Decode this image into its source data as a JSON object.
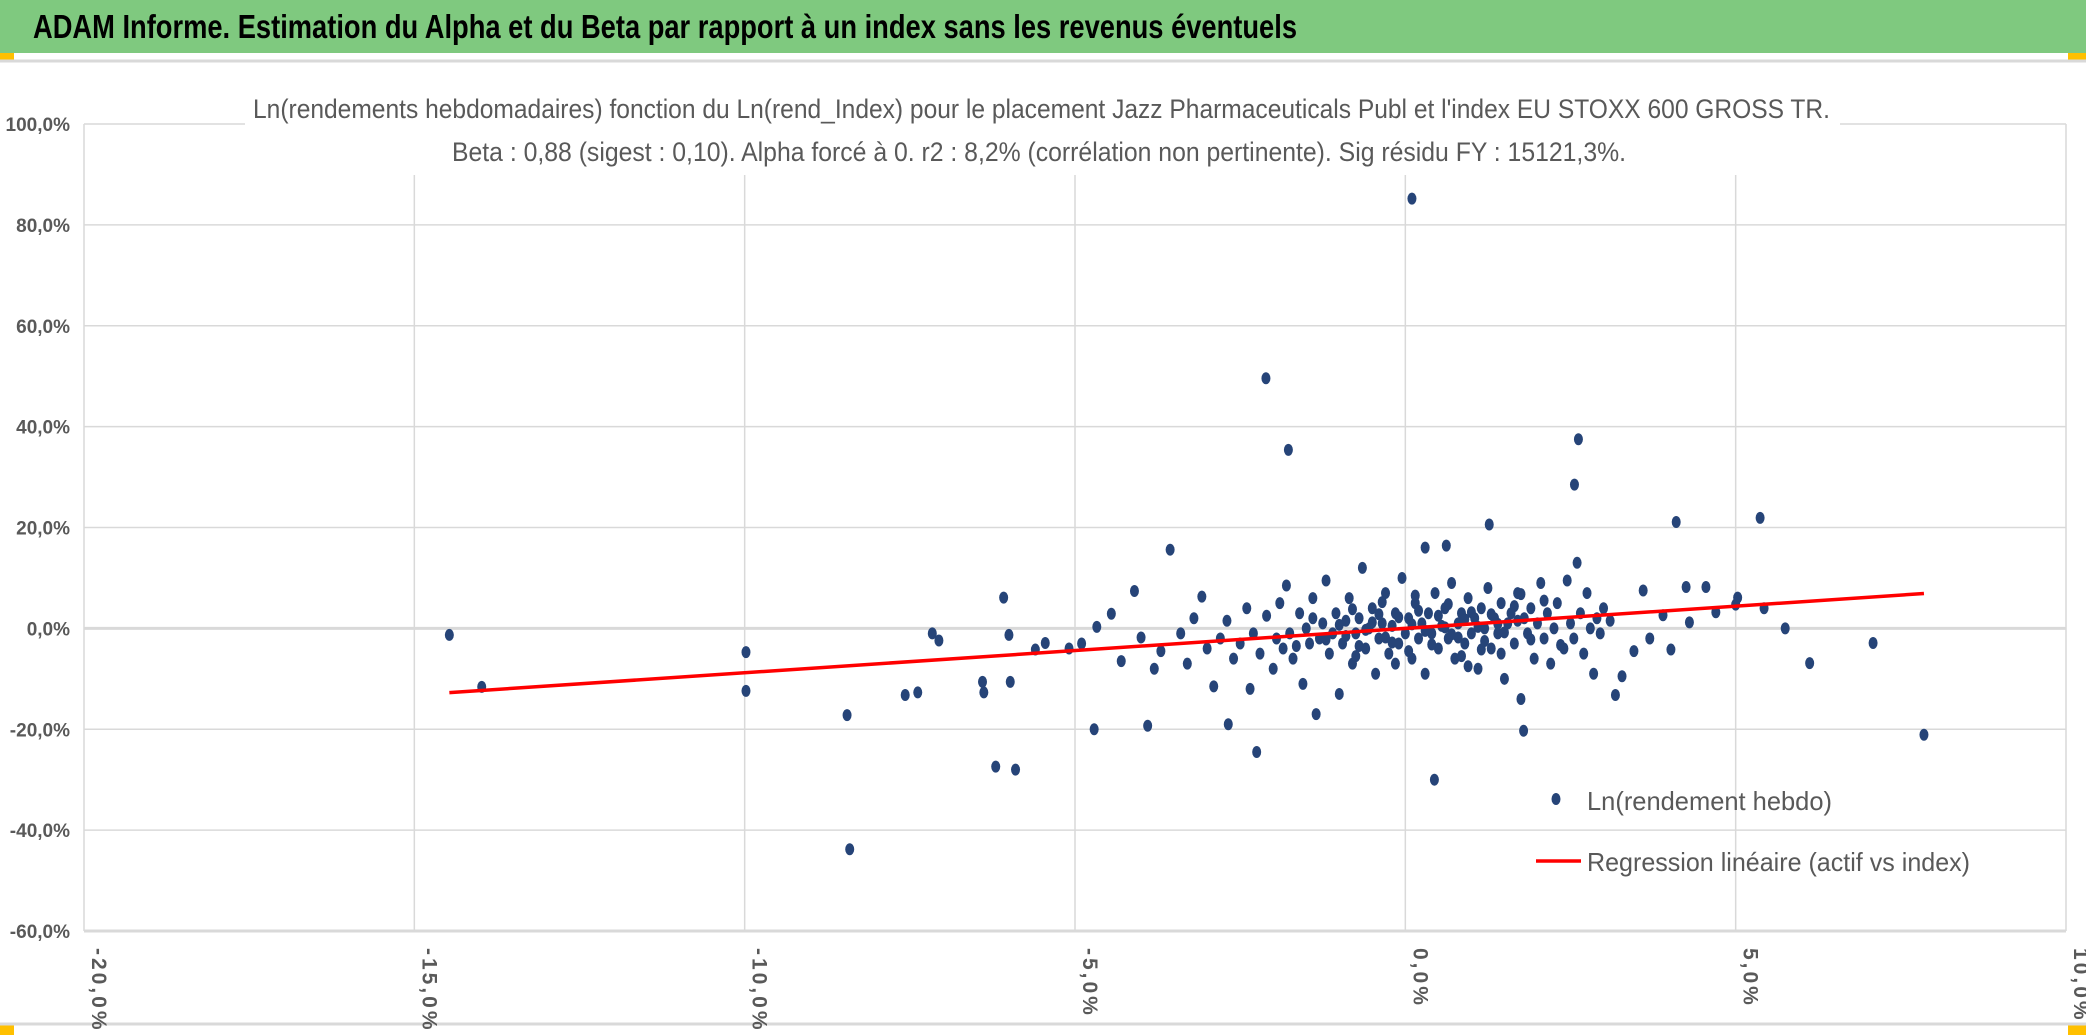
{
  "header": {
    "title": "ADAM Informe. Estimation du Alpha et du Beta par rapport à un index sans les revenus éventuels"
  },
  "colors": {
    "header_bg": "#7fc97f",
    "accent": "#ffc000",
    "points": "#264478",
    "regression": "#ff0000",
    "grid": "#d9d9d9",
    "text": "#595959"
  },
  "chart_data": {
    "type": "scatter",
    "title": "Ln(rendements hebdomadaires) fonction du Ln(rend_Index) pour le placement Jazz Pharmaceuticals Publ et l'index EU STOXX 600 GROSS TR.",
    "subtitle": "Beta : 0,88 (sigest : 0,10). Alpha forcé à 0. r2 : 8,2% (corrélation non pertinente). Sig résidu FY : 15121,3%.",
    "xlabel": "",
    "ylabel": "",
    "xlim": [
      -20,
      10
    ],
    "ylim": [
      -60,
      100
    ],
    "x_ticks": [
      -20,
      -15,
      -10,
      -5,
      0,
      5,
      10
    ],
    "x_tick_labels": [
      "-20,0%",
      "-15,0%",
      "-10,0%",
      "-5,0%",
      "0,0%",
      "5,0%",
      "10,0%"
    ],
    "y_ticks": [
      100,
      80,
      60,
      40,
      20,
      0,
      -20,
      -40,
      -60
    ],
    "y_tick_labels": [
      "100,0%",
      "80,0%",
      "60,0%",
      "40,0%",
      "20,0%",
      "0,0%",
      "-20,0%",
      "-40,0%",
      "-60,0%"
    ],
    "grid": true,
    "legend_position": "bottom-right",
    "series": [
      {
        "name": "Ln(rendement hebdo)",
        "type": "scatter",
        "points": [
          [
            -14.47,
            -1.3
          ],
          [
            -13.98,
            -11.6
          ],
          [
            -9.98,
            -4.7
          ],
          [
            -9.98,
            -12.4
          ],
          [
            -8.45,
            -17.2
          ],
          [
            -8.41,
            -43.8
          ],
          [
            -7.57,
            -13.2
          ],
          [
            -7.38,
            -12.7
          ],
          [
            -7.16,
            -1
          ],
          [
            -7.06,
            -2.4
          ],
          [
            -6.4,
            -10.6
          ],
          [
            -6.38,
            -12.7
          ],
          [
            -6.0,
            -1.3
          ],
          [
            -6.2,
            -27.4
          ],
          [
            -6.08,
            6.1
          ],
          [
            -5.98,
            -10.6
          ],
          [
            -5.9,
            -28
          ],
          [
            -5.6,
            -4.2
          ],
          [
            -5.45,
            -2.9
          ],
          [
            -5.09,
            -4
          ],
          [
            -4.71,
            -20
          ],
          [
            -4.67,
            0.3
          ],
          [
            -4.45,
            2.9
          ],
          [
            -4.1,
            7.4
          ],
          [
            -3.9,
            -19.3
          ],
          [
            -3.56,
            15.6
          ],
          [
            -3.08,
            6.3
          ],
          [
            -2.11,
            49.6
          ],
          [
            -2.25,
            -24.5
          ],
          [
            -2.68,
            -19
          ],
          [
            -1.77,
            35.4
          ],
          [
            0.1,
            85.2
          ],
          [
            0.44,
            -30
          ],
          [
            0.3,
            16
          ],
          [
            0.62,
            16.4
          ],
          [
            1.27,
            20.6
          ],
          [
            1.79,
            -20.3
          ],
          [
            2.56,
            28.5
          ],
          [
            2.62,
            37.5
          ],
          [
            4.1,
            21.1
          ],
          [
            5.37,
            21.9
          ],
          [
            5.43,
            4
          ],
          [
            5.75,
            0
          ],
          [
            6.12,
            -6.9
          ],
          [
            7.08,
            -2.9
          ],
          [
            7.85,
            -21.1
          ],
          [
            5.03,
            6.1
          ],
          [
            5.0,
            4.7
          ],
          [
            4.55,
            8.2
          ],
          [
            4.25,
            8.2
          ],
          [
            4.02,
            -4.2
          ],
          [
            3.9,
            2.6
          ],
          [
            3.46,
            -4.5
          ],
          [
            3.28,
            -9.5
          ],
          [
            3.18,
            -13.2
          ],
          [
            3.7,
            -2
          ],
          [
            4.3,
            1.2
          ],
          [
            4.7,
            3.2
          ],
          [
            3.6,
            7.5
          ],
          [
            3.1,
            1.5
          ],
          [
            -4.9,
            -3
          ],
          [
            -4.3,
            -6.5
          ],
          [
            -4.0,
            -1.8
          ],
          [
            -3.8,
            -8
          ],
          [
            -3.7,
            -4.5
          ],
          [
            -3.4,
            -1
          ],
          [
            -3.3,
            -7
          ],
          [
            -3.2,
            2
          ],
          [
            -3.0,
            -4
          ],
          [
            -2.9,
            -11.5
          ],
          [
            -2.8,
            -2
          ],
          [
            -2.7,
            1.5
          ],
          [
            -2.6,
            -6
          ],
          [
            -2.5,
            -3
          ],
          [
            -2.4,
            4
          ],
          [
            -2.35,
            -12
          ],
          [
            -2.3,
            -1
          ],
          [
            -2.2,
            -5
          ],
          [
            -2.1,
            2.5
          ],
          [
            -2.0,
            -8
          ],
          [
            -1.95,
            -2
          ],
          [
            -1.9,
            5
          ],
          [
            -1.85,
            -4
          ],
          [
            -1.8,
            8.5
          ],
          [
            -1.75,
            -1
          ],
          [
            -1.7,
            -6
          ],
          [
            -1.6,
            3
          ],
          [
            -1.55,
            -11
          ],
          [
            -1.5,
            0
          ],
          [
            -1.45,
            -3
          ],
          [
            -1.4,
            6
          ],
          [
            -1.35,
            -17
          ],
          [
            -1.3,
            -2
          ],
          [
            -1.25,
            1
          ],
          [
            -1.2,
            9.5
          ],
          [
            -1.15,
            -5
          ],
          [
            -1.1,
            -1
          ],
          [
            -1.05,
            3
          ],
          [
            -1.0,
            -13
          ],
          [
            -0.95,
            -3
          ],
          [
            -0.9,
            1.5
          ],
          [
            -0.85,
            6
          ],
          [
            -0.8,
            -7
          ],
          [
            -0.75,
            -1
          ],
          [
            -0.7,
            2
          ],
          [
            -0.65,
            12
          ],
          [
            -0.6,
            -4
          ],
          [
            -0.55,
            0
          ],
          [
            -0.5,
            4
          ],
          [
            -0.45,
            -9
          ],
          [
            -0.4,
            -2
          ],
          [
            -0.35,
            1
          ],
          [
            -0.3,
            7
          ],
          [
            -0.25,
            -5
          ],
          [
            -0.2,
            0.5
          ],
          [
            -0.15,
            3
          ],
          [
            -0.1,
            -3
          ],
          [
            -0.05,
            10
          ],
          [
            0.0,
            -1
          ],
          [
            0.05,
            2
          ],
          [
            0.1,
            -6
          ],
          [
            0.15,
            5
          ],
          [
            0.2,
            -2
          ],
          [
            0.25,
            1
          ],
          [
            0.3,
            -9
          ],
          [
            0.35,
            3
          ],
          [
            0.4,
            -1
          ],
          [
            0.45,
            7
          ],
          [
            0.5,
            -4
          ],
          [
            0.55,
            0.5
          ],
          [
            0.6,
            4
          ],
          [
            0.65,
            -2
          ],
          [
            0.7,
            9
          ],
          [
            0.75,
            -6
          ],
          [
            0.8,
            1
          ],
          [
            0.85,
            3
          ],
          [
            0.9,
            -3
          ],
          [
            0.95,
            6
          ],
          [
            1.0,
            -1
          ],
          [
            1.05,
            2
          ],
          [
            1.1,
            -8
          ],
          [
            1.15,
            4
          ],
          [
            1.2,
            0
          ],
          [
            1.25,
            8
          ],
          [
            1.3,
            -4
          ],
          [
            1.35,
            2
          ],
          [
            1.4,
            -1
          ],
          [
            1.45,
            5
          ],
          [
            1.5,
            -10
          ],
          [
            1.55,
            1
          ],
          [
            1.6,
            3
          ],
          [
            1.65,
            -3
          ],
          [
            1.7,
            7
          ],
          [
            1.75,
            -14
          ],
          [
            1.8,
            2
          ],
          [
            1.85,
            -1
          ],
          [
            1.9,
            4
          ],
          [
            1.95,
            -6
          ],
          [
            2.0,
            1
          ],
          [
            2.05,
            9
          ],
          [
            2.1,
            -2
          ],
          [
            2.15,
            3
          ],
          [
            2.2,
            -7
          ],
          [
            2.25,
            0
          ],
          [
            2.3,
            5
          ],
          [
            2.4,
            -4
          ],
          [
            2.45,
            9.5
          ],
          [
            2.5,
            1
          ],
          [
            2.55,
            -2
          ],
          [
            2.6,
            13
          ],
          [
            2.65,
            3
          ],
          [
            2.7,
            -5
          ],
          [
            2.75,
            7
          ],
          [
            2.8,
            0
          ],
          [
            2.85,
            -9
          ],
          [
            2.9,
            2
          ],
          [
            2.95,
            -1
          ],
          [
            3.0,
            4
          ],
          [
            -0.9,
            -1.5
          ],
          [
            -0.7,
            -3.5
          ],
          [
            -0.5,
            1.2
          ],
          [
            -0.3,
            -1.8
          ],
          [
            -0.1,
            2.2
          ],
          [
            0.1,
            0.8
          ],
          [
            0.3,
            -0.5
          ],
          [
            0.5,
            2.5
          ],
          [
            0.7,
            -1.2
          ],
          [
            0.9,
            1.8
          ],
          [
            1.1,
            0.3
          ],
          [
            1.3,
            2.8
          ],
          [
            1.5,
            -0.8
          ],
          [
            1.7,
            1.5
          ],
          [
            1.9,
            -2.2
          ],
          [
            0.2,
            3.5
          ],
          [
            0.4,
            -3.2
          ],
          [
            0.6,
            0.2
          ],
          [
            0.8,
            -1.8
          ],
          [
            1.0,
            3.2
          ],
          [
            1.2,
            -2.5
          ],
          [
            1.4,
            0.9
          ],
          [
            -0.2,
            -2.8
          ],
          [
            -0.4,
            2.8
          ],
          [
            -0.6,
            -0.3
          ],
          [
            -0.8,
            3.8
          ],
          [
            -1.0,
            0.7
          ],
          [
            -1.2,
            -2.2
          ],
          [
            -1.4,
            2
          ],
          [
            0.05,
            -4.5
          ],
          [
            0.65,
            4.8
          ],
          [
            1.15,
            -4.2
          ],
          [
            1.65,
            4.4
          ],
          [
            -0.35,
            5.2
          ],
          [
            0.85,
            -5.5
          ],
          [
            1.45,
            -5
          ],
          [
            -0.75,
            -5.5
          ],
          [
            2.1,
            5.5
          ],
          [
            2.35,
            -3.3
          ],
          [
            0.15,
            6.5
          ],
          [
            0.95,
            -7.5
          ],
          [
            -0.15,
            -7
          ],
          [
            1.75,
            6.8
          ],
          [
            -1.65,
            -3.5
          ]
        ]
      },
      {
        "name": "Regression linéaire (actif vs index)",
        "type": "line",
        "beta": 0.88,
        "alpha": 0,
        "x_range": [
          -14.47,
          7.85
        ]
      }
    ]
  }
}
